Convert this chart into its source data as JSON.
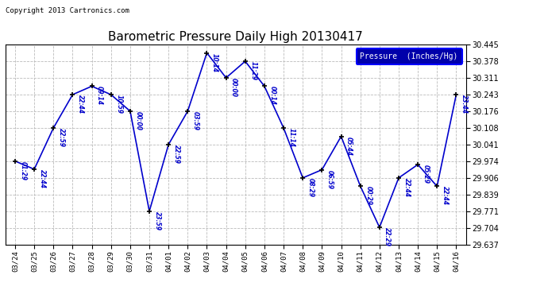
{
  "title": "Barometric Pressure Daily High 20130417",
  "copyright": "Copyright 2013 Cartronics.com",
  "legend_label": "Pressure  (Inches/Hg)",
  "dates": [
    "03/24",
    "03/25",
    "03/26",
    "03/27",
    "03/28",
    "03/29",
    "03/30",
    "03/31",
    "04/01",
    "04/02",
    "04/03",
    "04/04",
    "04/05",
    "04/06",
    "04/07",
    "04/08",
    "04/09",
    "04/10",
    "04/11",
    "04/12",
    "04/13",
    "04/14",
    "04/15",
    "04/16"
  ],
  "values": [
    29.974,
    29.941,
    30.108,
    30.243,
    30.277,
    30.243,
    30.176,
    29.771,
    30.041,
    30.176,
    30.412,
    30.311,
    30.378,
    30.277,
    30.108,
    29.906,
    29.939,
    30.074,
    29.873,
    29.706,
    29.906,
    29.96,
    29.872,
    30.243
  ],
  "time_labels": [
    "01:29",
    "22:44",
    "22:59",
    "22:44",
    "09:14",
    "10:59",
    "00:00",
    "23:59",
    "22:59",
    "03:59",
    "10:14",
    "00:00",
    "11:29",
    "00:14",
    "11:14",
    "08:29",
    "06:59",
    "05:44",
    "00:29",
    "22:29",
    "22:44",
    "05:29",
    "22:44",
    "23:44"
  ],
  "ylim_min": 29.637,
  "ylim_max": 30.445,
  "yticks": [
    29.637,
    29.704,
    29.771,
    29.839,
    29.906,
    29.974,
    30.041,
    30.108,
    30.176,
    30.243,
    30.311,
    30.378,
    30.445
  ],
  "line_color": "#0000cc",
  "marker_color": "#000000",
  "background_color": "#ffffff",
  "grid_color": "#bbbbbb",
  "title_color": "#000000",
  "copyright_color": "#000000",
  "label_color": "#0000cc",
  "legend_bg": "#0000aa",
  "legend_text_color": "#ffffff"
}
